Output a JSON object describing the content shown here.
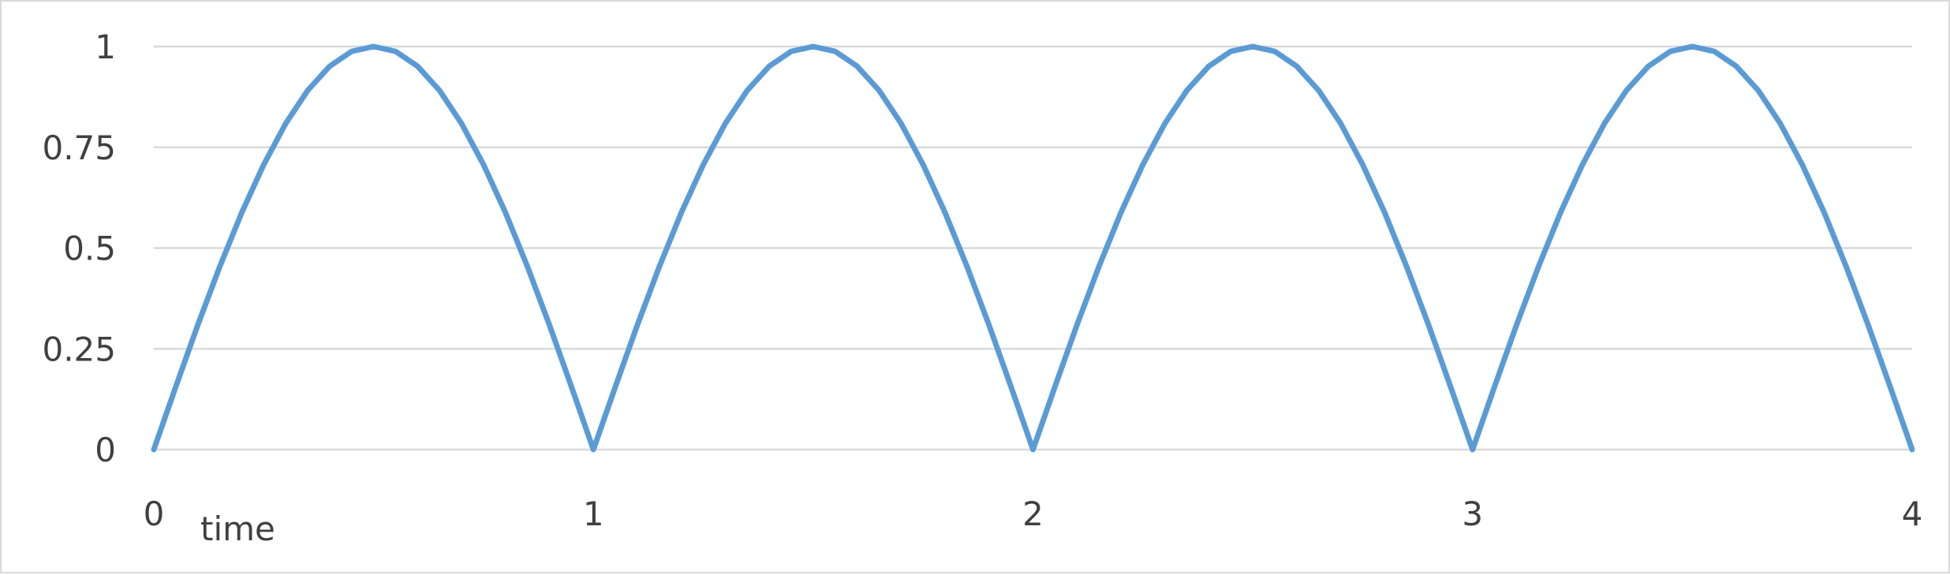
{
  "chart_data": {
    "type": "line",
    "title": "",
    "xlabel": "time",
    "ylabel": "",
    "xlim": [
      0,
      4
    ],
    "ylim": [
      0,
      1
    ],
    "grid": true,
    "legend": "none",
    "x_ticks": [
      "0",
      "1",
      "2",
      "3",
      "4"
    ],
    "y_ticks": [
      "0",
      "0.25",
      "0.5",
      "0.75",
      "1"
    ],
    "x": [
      0,
      0.05,
      0.1,
      0.15,
      0.2,
      0.25,
      0.3,
      0.35,
      0.4,
      0.45,
      0.5,
      0.55,
      0.6,
      0.65,
      0.7,
      0.75,
      0.8,
      0.85,
      0.9,
      0.95,
      1,
      1.05,
      1.1,
      1.15,
      1.2,
      1.25,
      1.3,
      1.35,
      1.4,
      1.45,
      1.5,
      1.55,
      1.6,
      1.65,
      1.7,
      1.75,
      1.8,
      1.85,
      1.9,
      1.95,
      2,
      2.05,
      2.1,
      2.15,
      2.2,
      2.25,
      2.3,
      2.35,
      2.4,
      2.45,
      2.5,
      2.55,
      2.6,
      2.65,
      2.7,
      2.75,
      2.8,
      2.85,
      2.9,
      2.95,
      3,
      3.05,
      3.1,
      3.15,
      3.2,
      3.25,
      3.3,
      3.35,
      3.4,
      3.45,
      3.5,
      3.55,
      3.6,
      3.65,
      3.7,
      3.75,
      3.8,
      3.85,
      3.9,
      3.95,
      4
    ],
    "series": [
      {
        "color": "#5b9bd5",
        "values": [
          0,
          0.156,
          0.309,
          0.454,
          0.588,
          0.707,
          0.809,
          0.891,
          0.951,
          0.988,
          1,
          0.988,
          0.951,
          0.891,
          0.809,
          0.707,
          0.588,
          0.454,
          0.309,
          0.156,
          0,
          0.156,
          0.309,
          0.454,
          0.588,
          0.707,
          0.809,
          0.891,
          0.951,
          0.988,
          1,
          0.988,
          0.951,
          0.891,
          0.809,
          0.707,
          0.588,
          0.454,
          0.309,
          0.156,
          0,
          0.156,
          0.309,
          0.454,
          0.588,
          0.707,
          0.809,
          0.891,
          0.951,
          0.988,
          1,
          0.988,
          0.951,
          0.891,
          0.809,
          0.707,
          0.588,
          0.454,
          0.309,
          0.156,
          0,
          0.156,
          0.309,
          0.454,
          0.588,
          0.707,
          0.809,
          0.891,
          0.951,
          0.988,
          1,
          0.988,
          0.951,
          0.891,
          0.809,
          0.707,
          0.588,
          0.454,
          0.309,
          0.156,
          0
        ]
      }
    ]
  }
}
